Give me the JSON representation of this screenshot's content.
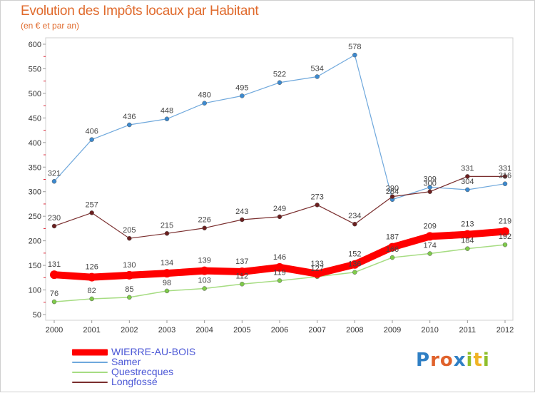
{
  "title": "Evolution des Impôts locaux par Habitant",
  "subtitle": "(en € et par an)",
  "logo": {
    "letters": [
      {
        "ch": "P",
        "color": "#2f7fc4"
      },
      {
        "ch": "r",
        "color": "#e0622c"
      },
      {
        "ch": "o",
        "color": "#e0622c"
      },
      {
        "ch": "x",
        "color": "#2f7fc4"
      },
      {
        "ch": "i",
        "color": "#8fbf2b"
      },
      {
        "ch": "t",
        "color": "#f0b324"
      },
      {
        "ch": "i",
        "color": "#8fbf2b"
      }
    ]
  },
  "chart_data": {
    "type": "line",
    "x": [
      "2000",
      "2001",
      "2002",
      "2003",
      "2004",
      "2005",
      "2006",
      "2007",
      "2008",
      "2009",
      "2010",
      "2011",
      "2012"
    ],
    "ylim": [
      50,
      600
    ],
    "yticks": [
      50,
      100,
      150,
      200,
      250,
      300,
      350,
      400,
      450,
      500,
      550,
      600
    ],
    "grid": false,
    "legend_position": "bottom-left",
    "series": [
      {
        "name": "Samer",
        "color": "#6fa8dc",
        "marker": "#3c8ad0",
        "values": [
          321,
          406,
          436,
          448,
          480,
          495,
          522,
          534,
          578,
          284,
          309,
          304,
          316
        ]
      },
      {
        "name": "Longfossé",
        "color": "#7a2e2e",
        "marker": "#6b1f1f",
        "values": [
          230,
          257,
          205,
          215,
          226,
          243,
          249,
          273,
          234,
          290,
          300,
          331,
          331
        ]
      },
      {
        "name": "Questrecques",
        "color": "#a6dc82",
        "marker": "#7fcc4a",
        "values": [
          76,
          82,
          85,
          98,
          103,
          112,
          119,
          127,
          136,
          166,
          174,
          184,
          192
        ]
      },
      {
        "name": "WIERRE-AU-BOIS",
        "color": "#ff0000",
        "marker": "#ff0000",
        "values": [
          131,
          126,
          130,
          134,
          139,
          137,
          146,
          133,
          152,
          187,
          209,
          213,
          219
        ]
      }
    ],
    "data_labels": [
      [
        "321",
        "406",
        "436",
        "448",
        "480",
        "495",
        "522",
        "534",
        "578",
        "284",
        "309",
        "304",
        "316"
      ],
      [
        "230",
        "257",
        "205",
        "215",
        "226",
        "243",
        "249",
        "273",
        "234",
        "290",
        "300",
        "331",
        "331"
      ],
      [
        "76",
        "82",
        "85",
        "98",
        "103",
        "112",
        "119",
        "127",
        "136",
        "166",
        "174",
        "184",
        "192"
      ],
      [
        "131",
        "126",
        "130",
        "134",
        "139",
        "137",
        "146",
        "133",
        "152",
        "187",
        "209",
        "213",
        "219"
      ]
    ]
  },
  "legend": [
    {
      "label": "WIERRE-AU-BOIS",
      "color": "#ff0000"
    },
    {
      "label": "Samer",
      "color": "#6fa8dc"
    },
    {
      "label": "Questrecques",
      "color": "#a6dc82"
    },
    {
      "label": "Longfossé",
      "color": "#7a2e2e"
    }
  ]
}
